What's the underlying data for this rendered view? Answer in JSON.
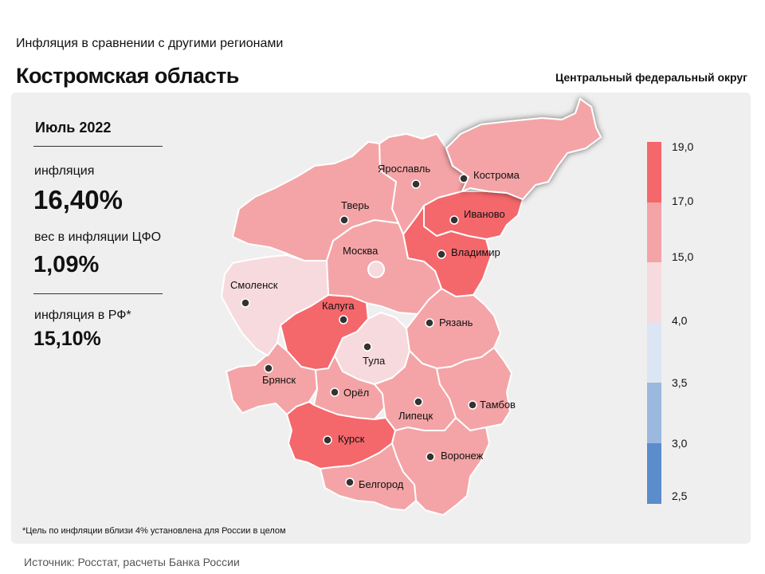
{
  "header": {
    "suptitle": "Инфляция в сравнении с другими регионами",
    "title": "Костромская область",
    "district": "Центральный федеральный округ"
  },
  "stats": {
    "period": "Июль 2022",
    "inflation_label": "инфляция",
    "inflation_value": "16,40%",
    "weight_label": "вес в инфляции ЦФО",
    "weight_value": "1,09%",
    "rf_label": "инфляция в РФ*",
    "rf_value": "15,10%"
  },
  "legend": {
    "ticks": [
      "19,0",
      "17,0",
      "15,0",
      "4,0",
      "3,5",
      "3,0",
      "2,5"
    ],
    "colors": [
      "#f4676b",
      "#f4a4a6",
      "#f7dadd",
      "#dce5f3",
      "#9bb8de",
      "#5b8ccb"
    ]
  },
  "regions": [
    {
      "name": "Кострома",
      "color": "#f4a4a6",
      "highlight": true
    },
    {
      "name": "Ярославль",
      "color": "#f4a4a6"
    },
    {
      "name": "Тверь",
      "color": "#f4a4a6"
    },
    {
      "name": "Иваново",
      "color": "#f4676b"
    },
    {
      "name": "Владимир",
      "color": "#f4676b"
    },
    {
      "name": "Москва",
      "color": "#f4a4a6"
    },
    {
      "name": "Смоленск",
      "color": "#f7dadd"
    },
    {
      "name": "Калуга",
      "color": "#f4676b"
    },
    {
      "name": "Тула",
      "color": "#f7dadd"
    },
    {
      "name": "Рязань",
      "color": "#f4a4a6"
    },
    {
      "name": "Брянск",
      "color": "#f4a4a6"
    },
    {
      "name": "Орёл",
      "color": "#f4a4a6"
    },
    {
      "name": "Липецк",
      "color": "#f4a4a6"
    },
    {
      "name": "Тамбов",
      "color": "#f4a4a6"
    },
    {
      "name": "Курск",
      "color": "#f4676b"
    },
    {
      "name": "Воронеж",
      "color": "#f4a4a6"
    },
    {
      "name": "Белгород",
      "color": "#f4a4a6"
    }
  ],
  "footnote": "*Цель по инфляции вблизи 4% установлена для России в целом",
  "source": "Источник: Росстат, расчеты Банка России"
}
